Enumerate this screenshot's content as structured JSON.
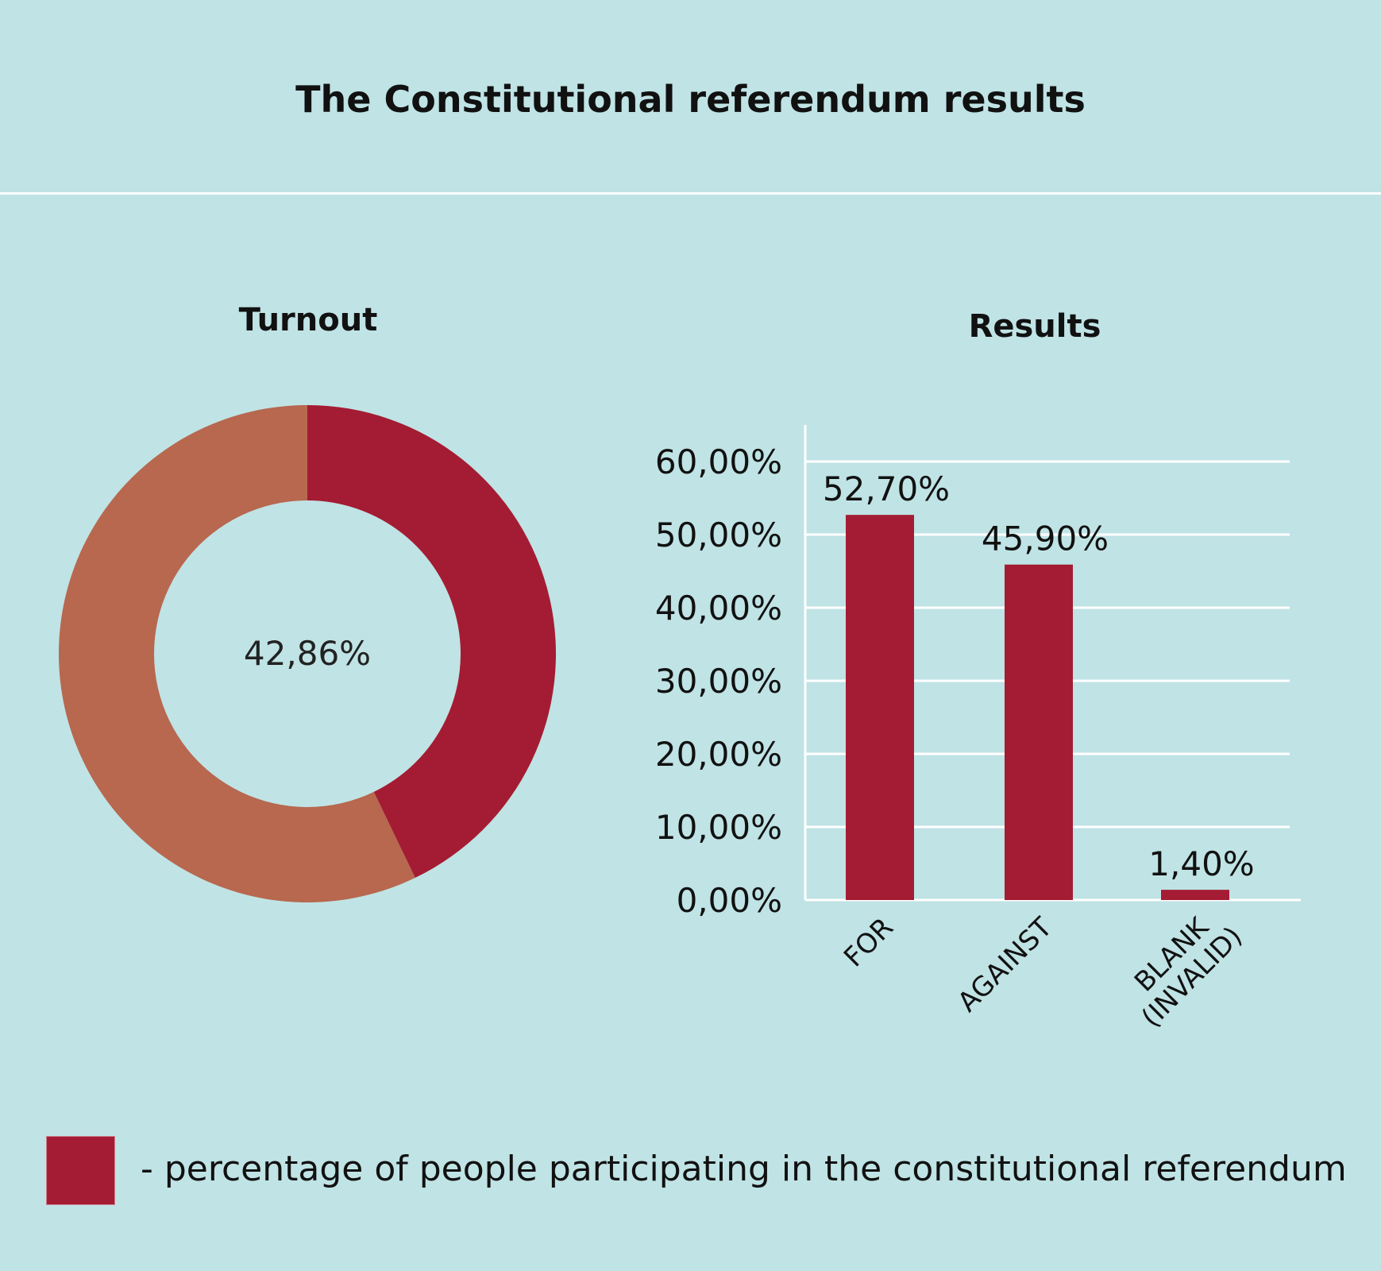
{
  "title": "The Constitutional referendum results",
  "colors": {
    "background": "#c0e3e5",
    "primary": "#a41c33",
    "secondary": "#b7684f"
  },
  "legend": {
    "text": "- percentage of people participating in the constitutional referendum",
    "color": "#a41c33"
  },
  "chart_data": [
    {
      "type": "pie",
      "title": "Turnout",
      "donut": true,
      "center_label": "42,86%",
      "slices": [
        {
          "value": 42.86,
          "color": "#a41c33"
        },
        {
          "value": 57.14,
          "color": "#b7684f"
        }
      ]
    },
    {
      "type": "bar",
      "title": "Results",
      "categories": [
        "FOR",
        "AGAINST",
        "BLANK (INVALID)"
      ],
      "values": [
        52.7,
        45.9,
        1.4
      ],
      "data_labels": [
        "52,70%",
        "45,90%",
        "1,40%"
      ],
      "ylim": [
        0,
        60
      ],
      "yticks": [
        "0,00%",
        "10,00%",
        "20,00%",
        "30,00%",
        "40,00%",
        "50,00%",
        "60,00%"
      ],
      "grid": true,
      "color": "#a41c33"
    }
  ]
}
